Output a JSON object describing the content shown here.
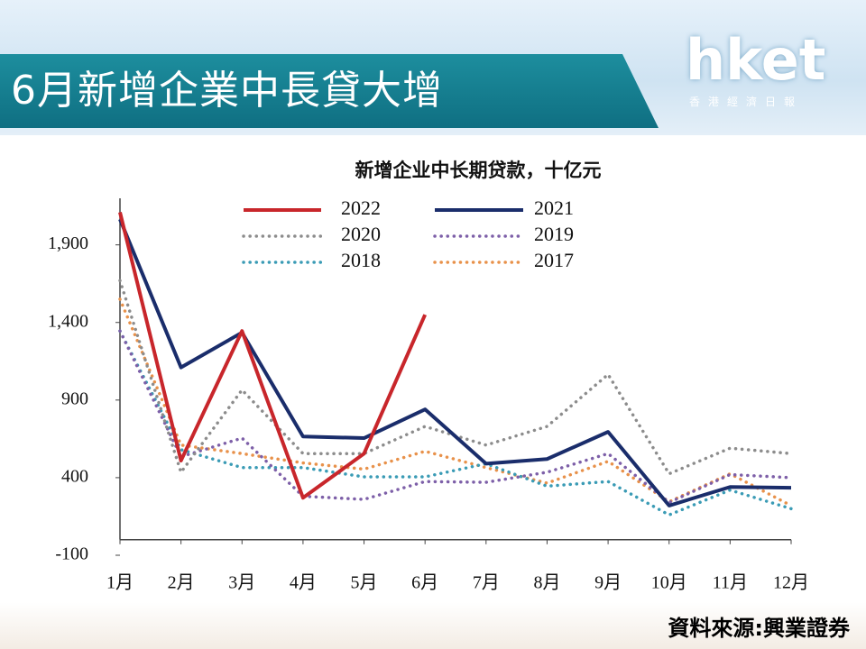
{
  "header": {
    "title": "6月新增企業中長貸大增",
    "logo": "hket",
    "logo_sub": "香港經濟日報"
  },
  "source": "資料來源:興業證券",
  "chart_data": {
    "type": "line",
    "title": "新增企业中长期贷款，十亿元",
    "categories": [
      "1月",
      "2月",
      "3月",
      "4月",
      "5月",
      "6月",
      "7月",
      "8月",
      "9月",
      "10月",
      "11月",
      "12月"
    ],
    "ylim": [
      -100,
      2200
    ],
    "yticks": [
      -100,
      400,
      900,
      {
        "value": 1400,
        "label": "1,400"
      },
      {
        "value": 1900,
        "label": "1,900"
      }
    ],
    "series": [
      {
        "name": "2022",
        "color": "#c8262b",
        "style": "solid",
        "values": [
          2110,
          510,
          1345,
          270,
          555,
          1450,
          null,
          null,
          null,
          null,
          null,
          null
        ]
      },
      {
        "name": "2021",
        "color": "#1a2d6b",
        "style": "solid",
        "values": [
          2065,
          1110,
          1335,
          665,
          655,
          840,
          490,
          520,
          695,
          220,
          340,
          335
        ]
      },
      {
        "name": "2020",
        "color": "#8c8c8c",
        "style": "dotted",
        "values": [
          1670,
          435,
          965,
          555,
          555,
          730,
          610,
          730,
          1065,
          425,
          590,
          555
        ]
      },
      {
        "name": "2019",
        "color": "#7d5fa8",
        "style": "dotted",
        "values": [
          1345,
          535,
          655,
          280,
          260,
          375,
          370,
          435,
          555,
          240,
          420,
          400
        ]
      },
      {
        "name": "2018",
        "color": "#3a9bb5",
        "style": "dotted",
        "values": [
          1345,
          580,
          465,
          465,
          405,
          405,
          490,
          345,
          375,
          160,
          320,
          200
        ]
      },
      {
        "name": "2017",
        "color": "#e8914a",
        "style": "dotted",
        "values": [
          1550,
          610,
          555,
          495,
          455,
          570,
          465,
          365,
          505,
          245,
          425,
          220
        ]
      }
    ]
  }
}
